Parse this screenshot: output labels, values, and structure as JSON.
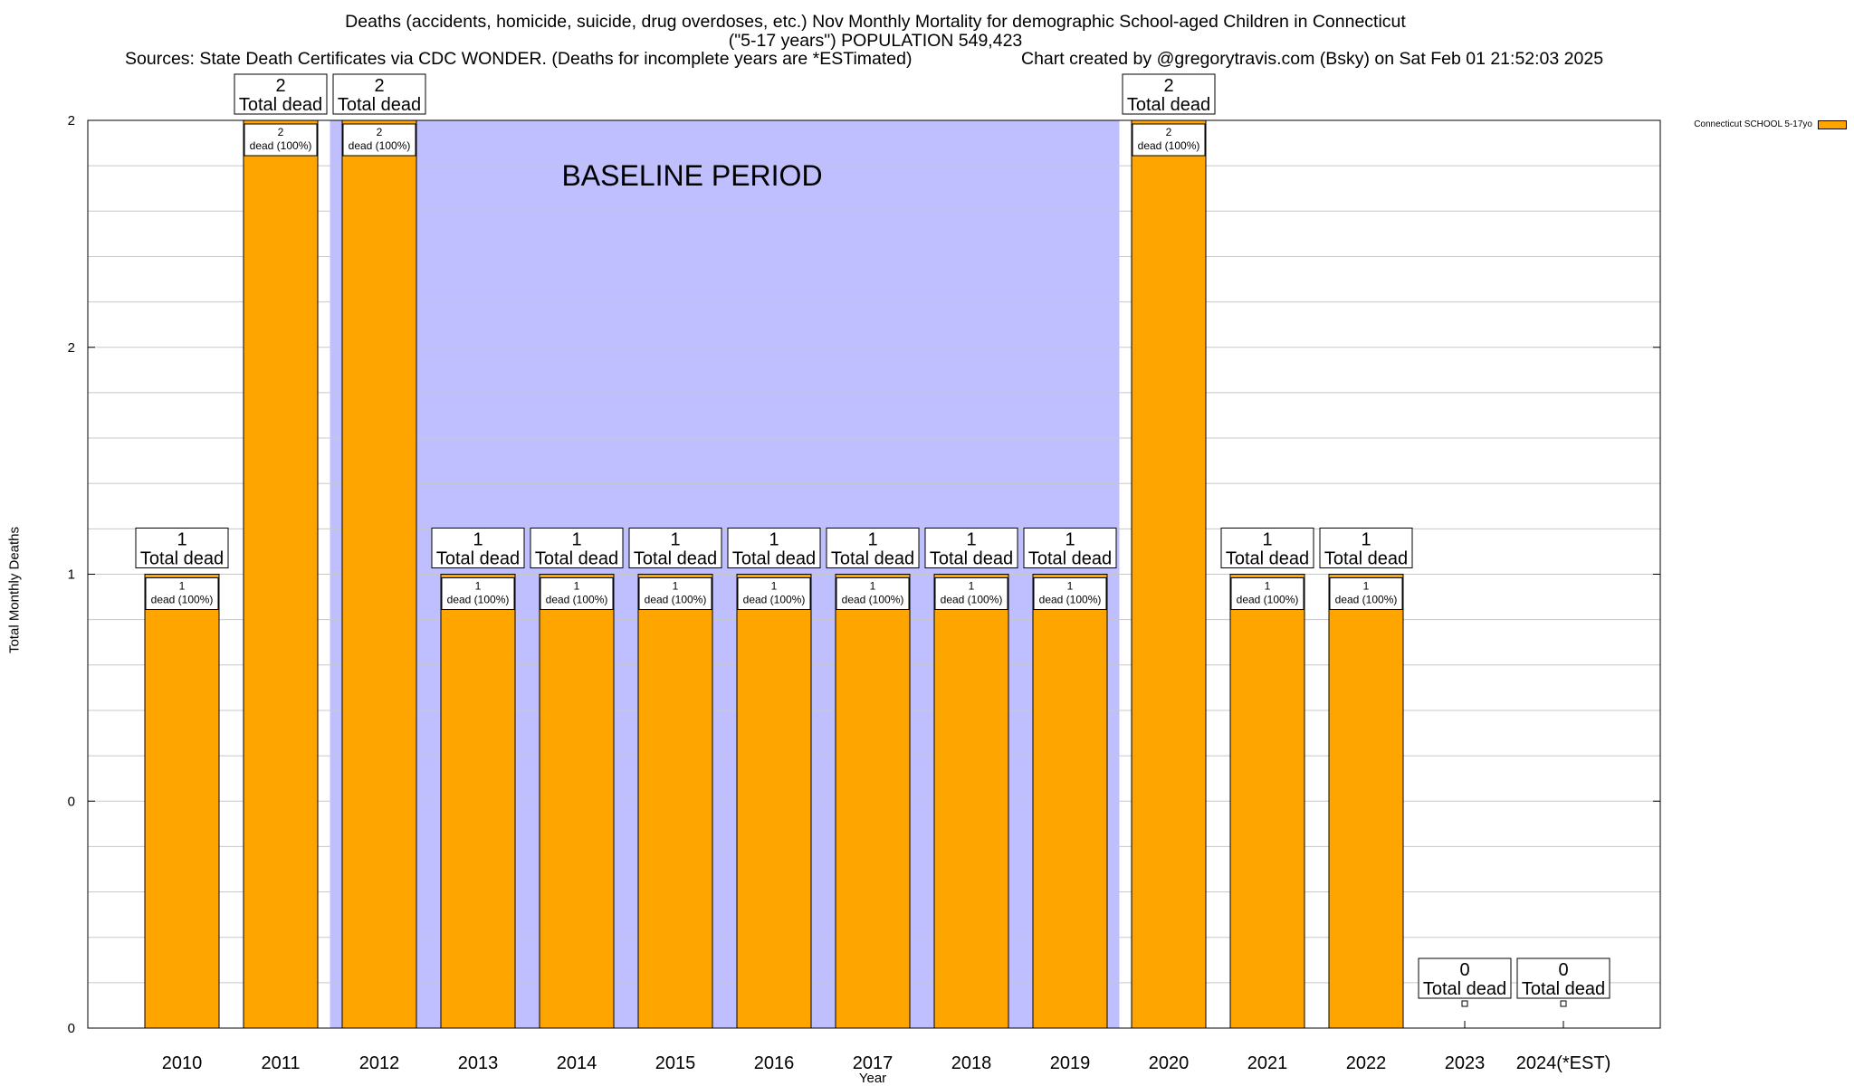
{
  "chart_data": {
    "type": "bar",
    "title_lines": [
      "Deaths (accidents, homicide, suicide, drug overdoses, etc.) Nov Monthly Mortality for demographic School-aged Children in Connecticut",
      "(\"5-17 years\") POPULATION 549,423"
    ],
    "source_text": "Sources: State Death Certificates via CDC WONDER. (Deaths for incomplete years are *ESTimated)",
    "credit_text": "Chart created by @gregorytravis.com (Bsky) on Sat Feb 01 21:52:03 2025",
    "xlabel": "Year",
    "ylabel": "Total Monthly Deaths",
    "ylim": [
      0,
      2
    ],
    "yticks": [
      "0",
      "0",
      "1",
      "2",
      "2"
    ],
    "grid": true,
    "legend_position": "top-right",
    "categories": [
      "2010",
      "2011",
      "2012",
      "2013",
      "2014",
      "2015",
      "2016",
      "2017",
      "2018",
      "2019",
      "2020",
      "2021",
      "2022",
      "2023",
      "2024(*EST)"
    ],
    "series": [
      {
        "name": "Connecticut SCHOOL 5-17yo",
        "color": "#FFA500",
        "values": [
          1,
          2,
          2,
          1,
          1,
          1,
          1,
          1,
          1,
          1,
          2,
          1,
          1,
          0,
          0
        ]
      }
    ],
    "total_labels": [
      "1",
      "2",
      "2",
      "1",
      "1",
      "1",
      "1",
      "1",
      "1",
      "1",
      "2",
      "1",
      "1",
      "0",
      "0"
    ],
    "total_suffix": "Total dead",
    "inner_label_suffix": "dead (100%)",
    "baseline": {
      "label": "BASELINE PERIOD",
      "from": "2012",
      "to": "2019",
      "color": "#BFBFFF"
    }
  }
}
